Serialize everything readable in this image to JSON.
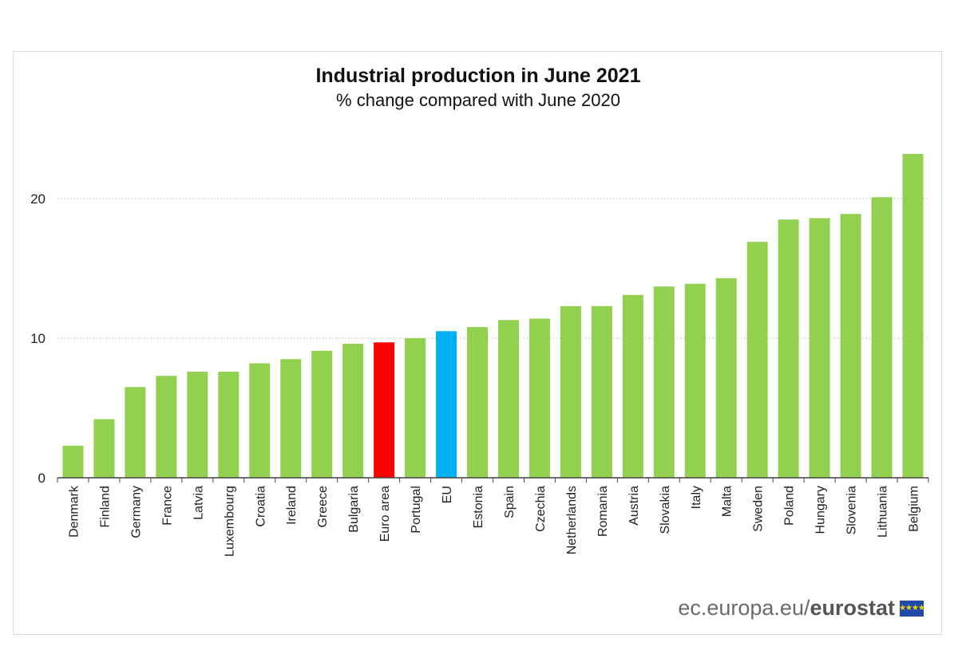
{
  "chart_data": {
    "type": "bar",
    "title": "Industrial production in June 2021",
    "subtitle": "% change compared with June 2020",
    "categories": [
      "Denmark",
      "Finland",
      "Germany",
      "France",
      "Latvia",
      "Luxembourg",
      "Croatia",
      "Ireland",
      "Greece",
      "Bulgaria",
      "Euro area",
      "Portugal",
      "EU",
      "Estonia",
      "Spain",
      "Czechia",
      "Netherlands",
      "Romania",
      "Austria",
      "Slovakia",
      "Italy",
      "Malta",
      "Sweden",
      "Poland",
      "Hungary",
      "Slovenia",
      "Lithuania",
      "Belgium"
    ],
    "values": [
      2.3,
      4.2,
      6.5,
      7.3,
      7.6,
      7.6,
      8.2,
      8.5,
      9.1,
      9.6,
      9.7,
      10.0,
      10.5,
      10.8,
      11.3,
      11.4,
      12.3,
      12.3,
      13.1,
      13.7,
      13.9,
      14.3,
      16.9,
      18.5,
      18.6,
      18.9,
      20.1,
      23.2
    ],
    "highlight": {
      "Euro area": "#ff0000",
      "EU": "#00b0f0"
    },
    "bar_color": "#92d050",
    "xlabel": "",
    "ylabel": "",
    "ylim": [
      0,
      24
    ],
    "yticks": [
      0,
      10,
      20
    ],
    "grid": true
  },
  "branding": {
    "site": "ec.europa.eu/",
    "name": "eurostat",
    "flag_stars": "★★★★"
  }
}
